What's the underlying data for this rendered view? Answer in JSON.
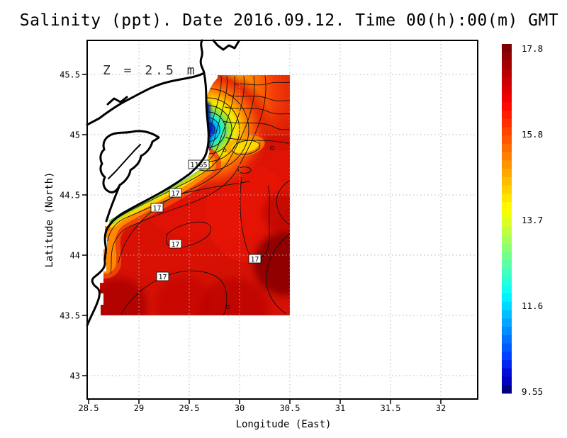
{
  "chart_data": {
    "type": "filled_contour_map",
    "title": "Salinity (ppt). Date 2016.09.12. Time 00(h):00(m) GMT",
    "annotation": "Z = 2.5 m",
    "xlabel": "Longitude (East)",
    "ylabel": "Latitude (North)",
    "x_ticks": [
      "28.5",
      "29",
      "29.5",
      "30",
      "30.5",
      "31",
      "31.5",
      "32"
    ],
    "y_ticks": [
      "45.5",
      "45",
      "44.5",
      "44",
      "43.5",
      "43"
    ],
    "x_tick_values": [
      28.5,
      29,
      29.5,
      30,
      30.5,
      31,
      31.5,
      32
    ],
    "y_tick_values": [
      45.5,
      45,
      44.5,
      44,
      43.5,
      43
    ],
    "grid": true,
    "field": {
      "variable": "Salinity",
      "units": "ppt",
      "depth_m": 2.5,
      "data_lon_range": [
        28.6,
        30.5
      ],
      "data_lat_range": [
        43.5,
        45.5
      ],
      "value_min_shown": 9.55,
      "value_max_shown": 17.8,
      "low_salinity_plume_near": {
        "lon": 29.7,
        "lat": 44.95
      },
      "open_sea_salinity_approx": 17
    },
    "contour_labels": [
      {
        "text": "1165",
        "lon": 29.6,
        "lat": 44.75
      },
      {
        "text": "17",
        "lon": 29.36,
        "lat": 44.52
      },
      {
        "text": "17",
        "lon": 29.18,
        "lat": 44.39
      },
      {
        "text": "17",
        "lon": 29.36,
        "lat": 44.09
      },
      {
        "text": "17",
        "lon": 30.15,
        "lat": 43.97
      },
      {
        "text": "17",
        "lon": 29.23,
        "lat": 43.82
      }
    ],
    "colorbar": {
      "orientation": "vertical",
      "position": "right",
      "tick_labels": [
        "17.8",
        "15.8",
        "13.7",
        "11.6",
        "9.55"
      ],
      "tick_values": [
        17.8,
        15.8,
        13.7,
        11.6,
        9.55
      ],
      "colors": [
        "#7f0000",
        "#920000",
        "#a50000",
        "#b80000",
        "#cb0000",
        "#dd0000",
        "#f00000",
        "#ff0800",
        "#ff1c00",
        "#ff3000",
        "#ff4400",
        "#ff5800",
        "#ff6c00",
        "#ff8000",
        "#ff9400",
        "#ffa800",
        "#ffbc00",
        "#ffd000",
        "#ffe400",
        "#fff800",
        "#f2ff0c",
        "#d9ff26",
        "#c0ff40",
        "#a6ff59",
        "#8dff73",
        "#73ff8c",
        "#5affa6",
        "#40ffc0",
        "#26ffd9",
        "#0dfff2",
        "#00f2ff",
        "#00d9ff",
        "#00c0ff",
        "#00a6ff",
        "#008dff",
        "#0073ff",
        "#005aff",
        "#0040ff",
        "#0026f2",
        "#000dd9",
        "#0000c0",
        "#000080"
      ]
    },
    "accent_colors": {
      "deep_red": "#7f0000",
      "base_red": "#d41104",
      "plume_navy": "#000d8a"
    }
  }
}
